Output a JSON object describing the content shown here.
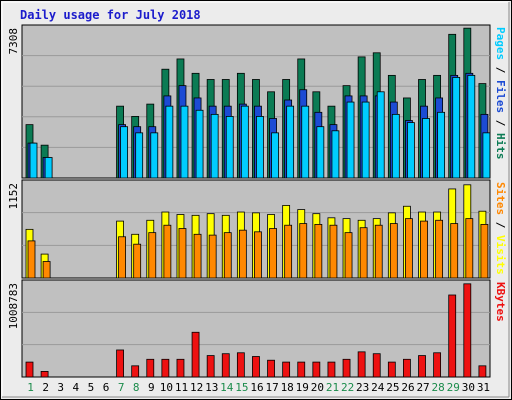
{
  "chart_data": {
    "title": "Daily usage for July 2018",
    "days": [
      "1",
      "2",
      "3",
      "4",
      "5",
      "6",
      "7",
      "8",
      "9",
      "10",
      "11",
      "12",
      "13",
      "14",
      "15",
      "16",
      "17",
      "18",
      "19",
      "20",
      "21",
      "22",
      "23",
      "24",
      "25",
      "26",
      "27",
      "28",
      "29",
      "30",
      "31"
    ],
    "weekend_days": [
      "1",
      "7",
      "8",
      "14",
      "15",
      "21",
      "22",
      "28",
      "29"
    ],
    "colors": {
      "pages": "#00ccff",
      "files": "#1c4bd4",
      "hits": "#0b7b54",
      "visits": "#ffff00",
      "sites": "#ff8800",
      "kbytes": "#ee1111",
      "weekday_label": "#000000",
      "weekend_label": "#1c8c4c",
      "title": "#1c1ccc",
      "panel_bg": "#c0c0c0",
      "frame_bg": "#ececec"
    },
    "panels": [
      {
        "type": "bar",
        "ymax_label": "7308",
        "ymax": 7308,
        "right_label_parts": [
          {
            "text": "Pages",
            "color": "#00ccff"
          },
          {
            "text": " / ",
            "color": "#000000"
          },
          {
            "text": "Files",
            "color": "#1c4bd4"
          },
          {
            "text": " / ",
            "color": "#000000"
          },
          {
            "text": "Hits",
            "color": "#0b7b54"
          }
        ],
        "series": [
          {
            "name": "Hits",
            "color": "#0b7b54",
            "values": [
              2600,
              1600,
              0,
              0,
              0,
              0,
              3500,
              3000,
              3600,
              5300,
              5800,
              5100,
              4800,
              4800,
              5100,
              4800,
              4200,
              4800,
              5800,
              4200,
              3500,
              4500,
              5900,
              6100,
              5000,
              3900,
              4800,
              5000,
              7000,
              7300,
              4600
            ]
          },
          {
            "name": "Files",
            "color": "#1c4bd4",
            "values": [
              1700,
              1000,
              0,
              0,
              0,
              0,
              2600,
              2500,
              2500,
              4000,
              4500,
              3900,
              3500,
              3500,
              3600,
              3500,
              2900,
              3800,
              4300,
              3200,
              2600,
              4000,
              4000,
              4000,
              3700,
              2800,
              3500,
              3900,
              5000,
              5100,
              3100
            ]
          },
          {
            "name": "Pages",
            "color": "#00ccff",
            "values": [
              1700,
              1000,
              0,
              0,
              0,
              0,
              2500,
              2200,
              2200,
              3500,
              3500,
              3300,
              3100,
              3000,
              3500,
              3000,
              2200,
              3500,
              3500,
              2500,
              2300,
              3700,
              3700,
              4200,
              3100,
              2700,
              2900,
              3200,
              4900,
              5000,
              2200
            ]
          }
        ]
      },
      {
        "type": "bar",
        "ymax_label": "1152",
        "ymax": 1152,
        "right_label_parts": [
          {
            "text": "Sites",
            "color": "#ff8800"
          },
          {
            "text": " / ",
            "color": "#000000"
          },
          {
            "text": "Visits",
            "color": "#ffff00"
          }
        ],
        "series": [
          {
            "name": "Visits",
            "color": "#ffff00",
            "values": [
              590,
              290,
              0,
              0,
              0,
              0,
              690,
              530,
              700,
              800,
              770,
              760,
              780,
              760,
              800,
              790,
              770,
              880,
              830,
              780,
              730,
              720,
              700,
              720,
              790,
              870,
              800,
              800,
              1080,
              1130,
              810
            ]
          },
          {
            "name": "Sites",
            "color": "#ff8800",
            "values": [
              450,
              200,
              0,
              0,
              0,
              0,
              500,
              410,
              550,
              640,
              600,
              530,
              520,
              550,
              580,
              560,
              600,
              640,
              660,
              650,
              640,
              550,
              610,
              640,
              660,
              720,
              690,
              700,
              660,
              720,
              650
            ]
          }
        ]
      },
      {
        "type": "bar",
        "ymax_label": "1008783",
        "ymax": 1008783,
        "right_label_parts": [
          {
            "text": "KBytes",
            "color": "#ee1111"
          }
        ],
        "series": [
          {
            "name": "KBytes",
            "color": "#ee1111",
            "values": [
              160000,
              60000,
              0,
              0,
              0,
              0,
              290000,
              120000,
              190000,
              190000,
              190000,
              480000,
              230000,
              250000,
              260000,
              220000,
              180000,
              160000,
              160000,
              160000,
              160000,
              190000,
              270000,
              250000,
              160000,
              190000,
              230000,
              260000,
              880000,
              1000000,
              120000
            ]
          }
        ]
      }
    ]
  }
}
